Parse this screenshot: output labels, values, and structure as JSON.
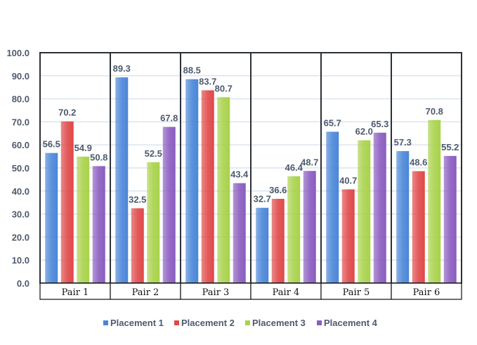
{
  "chart_data": {
    "type": "bar",
    "title": "",
    "xlabel": "",
    "ylabel": "",
    "ylim": [
      0,
      100
    ],
    "yticks": [
      "0.0",
      "10.0",
      "20.0",
      "30.0",
      "40.0",
      "50.0",
      "60.0",
      "70.0",
      "80.0",
      "90.0",
      "100.0"
    ],
    "grid": true,
    "legend_position": "bottom",
    "categories": [
      "Pair 1",
      "Pair 2",
      "Pair 3",
      "Pair 4",
      "Pair 5",
      "Pair 6"
    ],
    "series": [
      {
        "name": "Placement 1",
        "color": "#4a86d8",
        "values": [
          56.5,
          89.3,
          88.5,
          32.7,
          65.7,
          57.3
        ]
      },
      {
        "name": "Placement 2",
        "color": "#e04848",
        "values": [
          70.2,
          32.5,
          83.7,
          36.6,
          40.7,
          48.6
        ]
      },
      {
        "name": "Placement 3",
        "color": "#a8d24a",
        "values": [
          54.9,
          52.5,
          80.7,
          46.4,
          62.0,
          70.8
        ]
      },
      {
        "name": "Placement 4",
        "color": "#8a5cc0",
        "values": [
          50.8,
          67.8,
          43.4,
          48.7,
          65.3,
          55.2
        ]
      }
    ],
    "data_labels": [
      [
        "56.5",
        "89.3",
        "88.5",
        "32.7",
        "65.7",
        "57.3"
      ],
      [
        "70.2",
        "32.5",
        "83.7",
        "36.6",
        "40.7",
        "48.6"
      ],
      [
        "54.9",
        "52.5",
        "80.7",
        "46.4",
        "62.0",
        "70.8"
      ],
      [
        "50.8",
        "67.8",
        "43.4",
        "48.7",
        "65.3",
        "55.2"
      ]
    ]
  }
}
